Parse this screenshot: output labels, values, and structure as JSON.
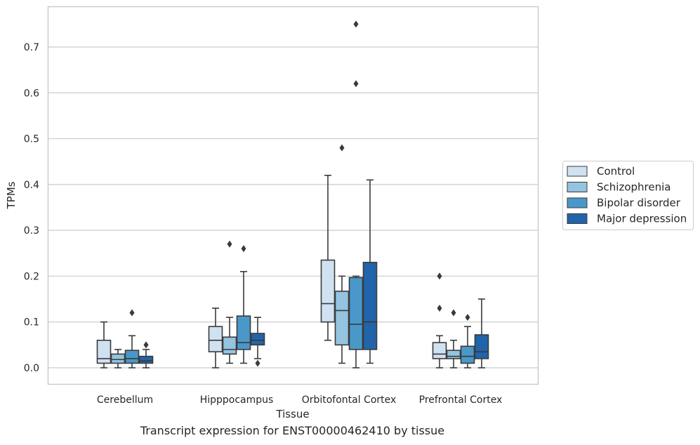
{
  "caption": "Transcript expression for ENST00000462410 by tissue",
  "chart_data": {
    "type": "box",
    "title": "",
    "xlabel": "Tissue",
    "ylabel": "TPMs",
    "ylim": [
      -0.035,
      0.79
    ],
    "yticks": [
      0.0,
      0.1,
      0.2,
      0.3,
      0.4,
      0.5,
      0.6,
      0.7
    ],
    "ytick_labels": [
      "0.0",
      "0.1",
      "0.2",
      "0.3",
      "0.4",
      "0.5",
      "0.6",
      "0.7"
    ],
    "grid": "horizontal",
    "legend_position": "right",
    "categories": [
      "Cerebellum",
      "Hipppocampus",
      "Orbitofontal Cortex",
      "Prefrontal Cortex"
    ],
    "series": [
      {
        "name": "Control",
        "color": "#d0e1f2",
        "boxes": [
          {
            "whislo": 0.0,
            "q1": 0.01,
            "med": 0.02,
            "q3": 0.06,
            "whishi": 0.1,
            "fliers": []
          },
          {
            "whislo": 0.0,
            "q1": 0.035,
            "med": 0.06,
            "q3": 0.09,
            "whishi": 0.13,
            "fliers": []
          },
          {
            "whislo": 0.06,
            "q1": 0.1,
            "med": 0.14,
            "q3": 0.235,
            "whishi": 0.42,
            "fliers": []
          },
          {
            "whislo": 0.0,
            "q1": 0.02,
            "med": 0.03,
            "q3": 0.055,
            "whishi": 0.07,
            "fliers": [
              0.13,
              0.2
            ]
          }
        ]
      },
      {
        "name": "Schizophrenia",
        "color": "#94c4df",
        "boxes": [
          {
            "whislo": 0.0,
            "q1": 0.01,
            "med": 0.018,
            "q3": 0.03,
            "whishi": 0.04,
            "fliers": []
          },
          {
            "whislo": 0.01,
            "q1": 0.03,
            "med": 0.04,
            "q3": 0.067,
            "whishi": 0.11,
            "fliers": [
              0.27
            ]
          },
          {
            "whislo": 0.01,
            "q1": 0.05,
            "med": 0.125,
            "q3": 0.167,
            "whishi": 0.2,
            "fliers": [
              0.48
            ]
          },
          {
            "whislo": 0.0,
            "q1": 0.02,
            "med": 0.025,
            "q3": 0.038,
            "whishi": 0.06,
            "fliers": [
              0.12
            ]
          }
        ]
      },
      {
        "name": "Bipolar disorder",
        "color": "#4a98c9",
        "boxes": [
          {
            "whislo": 0.0,
            "q1": 0.01,
            "med": 0.02,
            "q3": 0.038,
            "whishi": 0.07,
            "fliers": [
              0.12
            ]
          },
          {
            "whislo": 0.01,
            "q1": 0.04,
            "med": 0.055,
            "q3": 0.113,
            "whishi": 0.21,
            "fliers": [
              0.26
            ]
          },
          {
            "whislo": 0.0,
            "q1": 0.04,
            "med": 0.095,
            "q3": 0.197,
            "whishi": 0.2,
            "fliers": [
              0.62,
              0.75
            ]
          },
          {
            "whislo": 0.0,
            "q1": 0.01,
            "med": 0.025,
            "q3": 0.047,
            "whishi": 0.09,
            "fliers": [
              0.11
            ]
          }
        ]
      },
      {
        "name": "Major depression",
        "color": "#2264aa",
        "boxes": [
          {
            "whislo": 0.0,
            "q1": 0.01,
            "med": 0.015,
            "q3": 0.025,
            "whishi": 0.04,
            "fliers": [
              0.05
            ]
          },
          {
            "whislo": 0.02,
            "q1": 0.05,
            "med": 0.06,
            "q3": 0.075,
            "whishi": 0.11,
            "fliers": [
              0.01
            ]
          },
          {
            "whislo": 0.01,
            "q1": 0.04,
            "med": 0.1,
            "q3": 0.23,
            "whishi": 0.41,
            "fliers": []
          },
          {
            "whislo": 0.0,
            "q1": 0.02,
            "med": 0.035,
            "q3": 0.072,
            "whishi": 0.15,
            "fliers": []
          }
        ]
      }
    ]
  }
}
